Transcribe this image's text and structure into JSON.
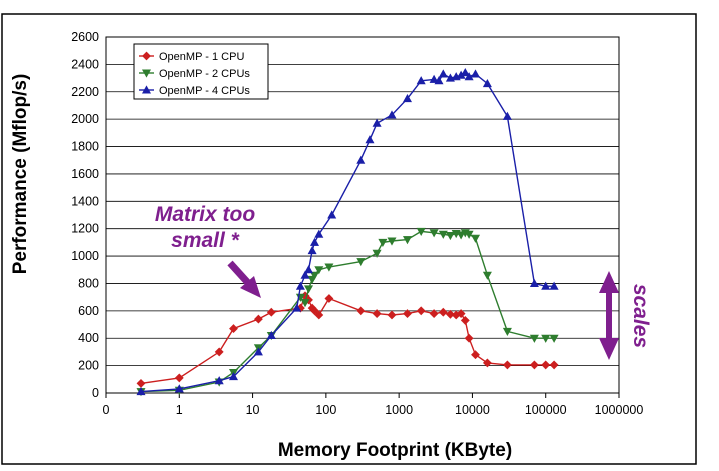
{
  "chart_data": {
    "type": "line",
    "title": "",
    "xlabel": "Memory Footprint (KByte)",
    "ylabel": "Performance (Mflop/s)",
    "x_scale": "log",
    "xlim": [
      0.1,
      1000000
    ],
    "ylim": [
      0,
      2600
    ],
    "x_tick_labels": [
      "0",
      "1",
      "10",
      "100",
      "1000",
      "10000",
      "100000",
      "1000000"
    ],
    "y_ticks": [
      0,
      200,
      400,
      600,
      800,
      1000,
      1200,
      1400,
      1600,
      1800,
      2000,
      2200,
      2400,
      2600
    ],
    "grid": "horizontal",
    "legend_position": "top-left",
    "series": [
      {
        "name": "OpenMP - 1 CPU",
        "color": "#cc1f1f",
        "marker": "diamond",
        "points": [
          [
            0.3,
            70
          ],
          [
            1,
            110
          ],
          [
            3.5,
            300
          ],
          [
            5.5,
            470
          ],
          [
            12,
            540
          ],
          [
            18,
            590
          ],
          [
            45,
            620
          ],
          [
            52,
            710
          ],
          [
            58,
            680
          ],
          [
            65,
            620
          ],
          [
            70,
            600
          ],
          [
            80,
            570
          ],
          [
            110,
            690
          ],
          [
            300,
            600
          ],
          [
            500,
            580
          ],
          [
            800,
            570
          ],
          [
            1300,
            580
          ],
          [
            2000,
            600
          ],
          [
            3000,
            580
          ],
          [
            4000,
            590
          ],
          [
            5000,
            575
          ],
          [
            6000,
            570
          ],
          [
            7000,
            580
          ],
          [
            8000,
            530
          ],
          [
            9000,
            400
          ],
          [
            11000,
            280
          ],
          [
            16000,
            220
          ],
          [
            30000,
            205
          ],
          [
            70000,
            205
          ],
          [
            100000,
            205
          ],
          [
            130000,
            205
          ]
        ]
      },
      {
        "name": "OpenMP - 2 CPUs",
        "color": "#2e7d2e",
        "marker": "triangle-down",
        "points": [
          [
            0.3,
            10
          ],
          [
            1,
            20
          ],
          [
            3.5,
            80
          ],
          [
            5.5,
            150
          ],
          [
            12,
            330
          ],
          [
            18,
            420
          ],
          [
            45,
            700
          ],
          [
            52,
            660
          ],
          [
            58,
            760
          ],
          [
            65,
            830
          ],
          [
            70,
            860
          ],
          [
            80,
            900
          ],
          [
            110,
            920
          ],
          [
            300,
            960
          ],
          [
            500,
            1020
          ],
          [
            600,
            1100
          ],
          [
            800,
            1110
          ],
          [
            1300,
            1120
          ],
          [
            2000,
            1180
          ],
          [
            3000,
            1170
          ],
          [
            4000,
            1160
          ],
          [
            5000,
            1150
          ],
          [
            6000,
            1165
          ],
          [
            7000,
            1155
          ],
          [
            8000,
            1170
          ],
          [
            9000,
            1160
          ],
          [
            11000,
            1130
          ],
          [
            16000,
            860
          ],
          [
            30000,
            450
          ],
          [
            70000,
            400
          ],
          [
            100000,
            400
          ],
          [
            130000,
            400
          ]
        ]
      },
      {
        "name": "OpenMP - 4 CPUs",
        "color": "#1a1fa8",
        "marker": "triangle-up",
        "points": [
          [
            0.3,
            10
          ],
          [
            1,
            30
          ],
          [
            3.5,
            90
          ],
          [
            5.5,
            120
          ],
          [
            12,
            300
          ],
          [
            18,
            420
          ],
          [
            40,
            620
          ],
          [
            45,
            780
          ],
          [
            52,
            860
          ],
          [
            58,
            900
          ],
          [
            65,
            1040
          ],
          [
            70,
            1100
          ],
          [
            80,
            1160
          ],
          [
            120,
            1300
          ],
          [
            300,
            1700
          ],
          [
            400,
            1850
          ],
          [
            500,
            1970
          ],
          [
            800,
            2030
          ],
          [
            1300,
            2150
          ],
          [
            2000,
            2280
          ],
          [
            3000,
            2290
          ],
          [
            3500,
            2280
          ],
          [
            4000,
            2330
          ],
          [
            5000,
            2300
          ],
          [
            6000,
            2310
          ],
          [
            7000,
            2320
          ],
          [
            8000,
            2340
          ],
          [
            9000,
            2310
          ],
          [
            11000,
            2330
          ],
          [
            16000,
            2260
          ],
          [
            30000,
            2020
          ],
          [
            70000,
            800
          ],
          [
            100000,
            780
          ],
          [
            130000,
            780
          ]
        ]
      }
    ],
    "annotations": {
      "matrix_note": {
        "lines": [
          "Matrix too",
          "small *"
        ],
        "color": "#7f1f8e"
      },
      "scales_note": {
        "text": "scales",
        "color": "#7f1f8e"
      }
    }
  }
}
